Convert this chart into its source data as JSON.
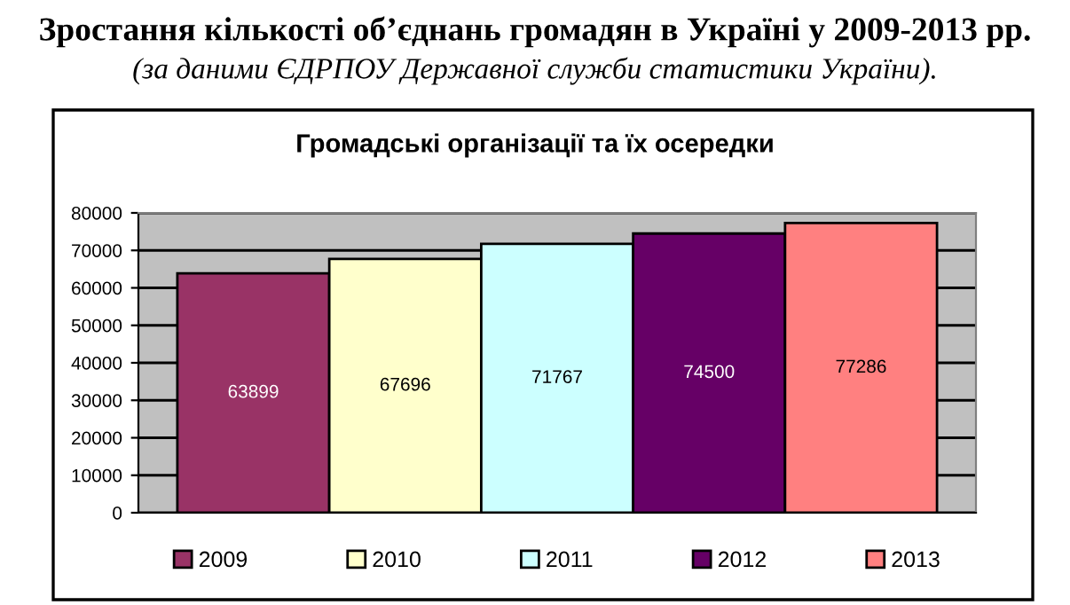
{
  "chart_data": {
    "type": "bar",
    "title": "Зростання кількості об’єднань громадян в Україні у 2009-2013 рр.",
    "subtitle": "(за даними ЄДРПОУ Державної служби статистики України).",
    "annotations": [
      "Громадські організації та їх осередки"
    ],
    "categories": [
      null
    ],
    "series": [
      {
        "name": "2009",
        "color": "#993366",
        "values": [
          63899
        ]
      },
      {
        "name": "2010",
        "color": "#ffffcc",
        "values": [
          67696
        ]
      },
      {
        "name": "2011",
        "color": "#ccffff",
        "values": [
          71767
        ]
      },
      {
        "name": "2012",
        "color": "#660066",
        "values": [
          74500
        ]
      },
      {
        "name": "2013",
        "color": "#ff8080",
        "values": [
          77286
        ]
      }
    ],
    "ylim": [
      0,
      80000
    ],
    "yticks": [
      0,
      10000,
      20000,
      30000,
      40000,
      50000,
      60000,
      70000,
      80000
    ],
    "grid": "y",
    "legend": "bottom",
    "data_labels": true,
    "tick_labels": "y"
  }
}
